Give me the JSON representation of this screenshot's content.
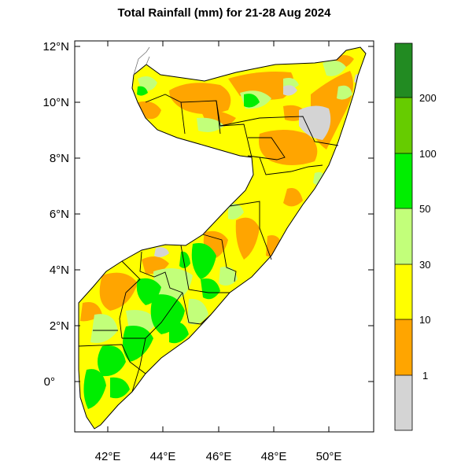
{
  "title": "Total Rainfall (mm) for 21-28 Aug 2024",
  "map": {
    "region": "Somalia",
    "lat_ticks": [
      "12°N",
      "10°N",
      "8°N",
      "6°N",
      "4°N",
      "2°N",
      "0°"
    ],
    "lon_ticks": [
      "42°E",
      "44°E",
      "46°E",
      "48°E",
      "50°E"
    ],
    "lat_range": [
      -1.7,
      12.3
    ],
    "lon_range": [
      40.9,
      51.6
    ]
  },
  "colorbar": {
    "labels": [
      "1",
      "10",
      "30",
      "50",
      "100",
      "200"
    ],
    "colors": [
      "#d4d4d4",
      "#ffa500",
      "#ffff00",
      "#c2ff7a",
      "#00ee00",
      "#66cc00",
      "#228b22"
    ]
  },
  "fill_colors": {
    "grey": "#d4d4d4",
    "orange": "#ffa500",
    "yellow": "#ffff00",
    "light_green": "#c2ff7a",
    "green": "#00ee00"
  }
}
